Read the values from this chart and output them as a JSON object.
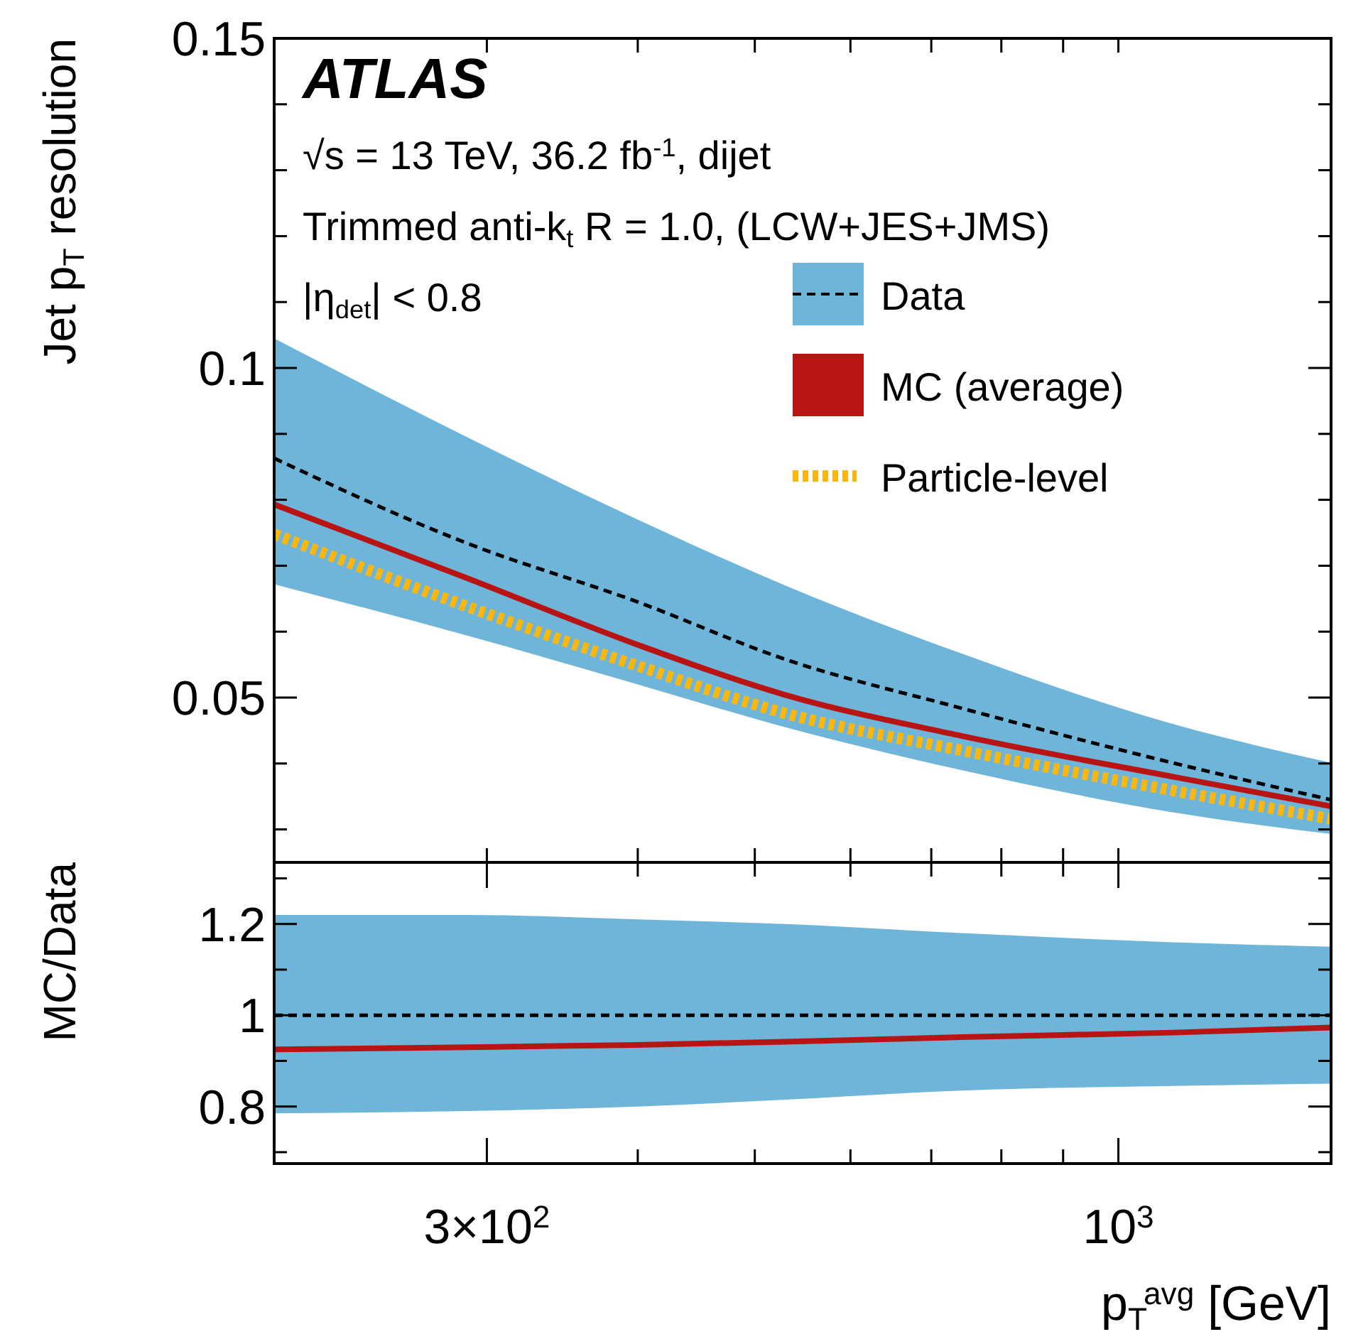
{
  "chart_data": [
    {
      "type": "line",
      "ylabel": "Jet p$_{T}$ resolution",
      "log": "x",
      "tick_labels": "y",
      "legend": "top right",
      "annotations": [
        "ATLAS",
        "√s = 13 TeV,  36.2 fb$^{-1}$, dijet",
        "Trimmed anti-k$_{t}$ R = 1.0, (LCW+JES+JMS)",
        "|η$_{det}$| < 0.8"
      ],
      "x": [
        200,
        289,
        400,
        530,
        741,
        1109,
        1500
      ],
      "xlim": [
        200,
        1500
      ],
      "xticks": [
        {
          "value": 300,
          "label": null
        },
        {
          "value": 400,
          "label": null
        },
        {
          "value": 500,
          "label": null
        },
        {
          "value": 600,
          "label": null
        },
        {
          "value": 700,
          "label": null
        },
        {
          "value": 800,
          "label": null
        },
        {
          "value": 900,
          "label": null
        },
        {
          "value": 1000,
          "label": null
        }
      ],
      "ylim": [
        0.025,
        0.15
      ],
      "yticks": [
        {
          "value": 0.03,
          "label": null
        },
        {
          "value": 0.04,
          "label": null
        },
        0.05,
        {
          "value": 0.06,
          "label": null
        },
        {
          "value": 0.07,
          "label": null
        },
        {
          "value": 0.08,
          "label": null
        },
        {
          "value": 0.09,
          "label": null
        },
        0.1,
        {
          "value": 0.11,
          "label": null
        },
        {
          "value": 0.12,
          "label": null
        },
        {
          "value": 0.13,
          "label": null
        },
        {
          "value": 0.14,
          "label": null
        },
        0.15
      ],
      "series": [
        {
          "name": "Data",
          "color": "#000000",
          "line_style": "dashed",
          "values": [
            0.0863,
            0.0734,
            0.0645,
            0.0558,
            0.0484,
            0.0401,
            0.0345
          ],
          "lower": [
            0.0672,
            0.0594,
            0.052,
            0.0455,
            0.039,
            0.0326,
            0.0293
          ],
          "upper": [
            0.1045,
            0.0895,
            0.077,
            0.067,
            0.0567,
            0.046,
            0.0401
          ]
        },
        {
          "name": "MC (average)",
          "color": "#b81414",
          "line_style": "solid",
          "values": [
            0.0793,
            0.0681,
            0.058,
            0.0504,
            0.0442,
            0.038,
            0.0335
          ]
        },
        {
          "name": "Particle-level",
          "color": "#fbb70c",
          "line_style": "dotted",
          "values": [
            0.0748,
            0.0638,
            0.0548,
            0.0476,
            0.042,
            0.0359,
            0.0316
          ]
        }
      ]
    },
    {
      "type": "line",
      "ylabel": "MC/Data",
      "xlabel": "p$_{T}$$^{avg}$  [GeV]",
      "log": "x",
      "legend": false,
      "x": [
        200,
        289,
        400,
        530,
        741,
        1109,
        1500
      ],
      "xlim": [
        200,
        1500
      ],
      "xticks": [
        {
          "value": 300,
          "label": "3×10$^{2}$"
        },
        {
          "value": 400,
          "label": null
        },
        {
          "value": 500,
          "label": null
        },
        {
          "value": 600,
          "label": null
        },
        {
          "value": 700,
          "label": null
        },
        {
          "value": 800,
          "label": null
        },
        {
          "value": 900,
          "label": null
        },
        {
          "value": 1000,
          "label": "10$^{3}$"
        }
      ],
      "ylim": [
        0.675,
        1.335
      ],
      "yticks": [
        {
          "value": 0.7,
          "label": null
        },
        0.8,
        {
          "value": 0.9,
          "label": null
        },
        1,
        {
          "value": 1.1,
          "label": null
        },
        1.2,
        {
          "value": 1.3,
          "label": null
        }
      ],
      "series": [
        {
          "color": "#000000",
          "line_style": "dashed",
          "values": [
            1,
            1,
            1,
            1,
            1,
            1,
            1
          ],
          "lower": [
            0.785,
            0.79,
            0.8,
            0.815,
            0.835,
            0.845,
            0.85
          ],
          "upper": [
            1.22,
            1.22,
            1.21,
            1.2,
            1.18,
            1.16,
            1.15
          ]
        },
        {
          "color": "#b81414",
          "line_style": "solid",
          "values": [
            0.925,
            0.93,
            0.935,
            0.942,
            0.952,
            0.962,
            0.973
          ]
        }
      ]
    }
  ]
}
